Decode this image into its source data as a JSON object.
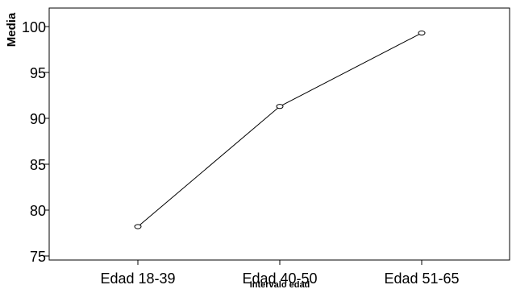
{
  "chart_data": {
    "type": "line",
    "categories": [
      "Edad 18-39",
      "Edad 40-50",
      "Edad 51-65"
    ],
    "series": [
      {
        "values": [
          78.2,
          91.3,
          99.3
        ]
      }
    ],
    "ylabel": "Media",
    "xlabel": "Intervalo edad",
    "ylim": [
      75,
      100
    ],
    "yticks": [
      "75",
      "80",
      "85",
      "90",
      "95",
      "100"
    ],
    "grid": false,
    "marker": "open-circle",
    "colors": {
      "line": "#000000",
      "background": "#ffffff"
    }
  }
}
